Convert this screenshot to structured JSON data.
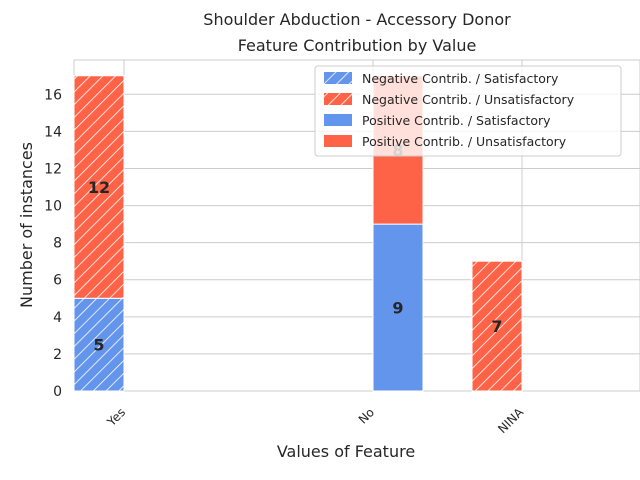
{
  "chart_data": {
    "type": "bar",
    "title_line1": "Shoulder Abduction - Accessory Donor",
    "title_line2": "Feature Contribution by Value",
    "xlabel": "Values of Feature",
    "ylabel": "Number of instances",
    "categories": [
      "Yes",
      "No",
      "NINA"
    ],
    "ylim": [
      0,
      17.85
    ],
    "yticks": [
      0,
      2,
      4,
      6,
      8,
      10,
      12,
      14,
      16
    ],
    "grid": true,
    "legend_position": "top-right",
    "colors": {
      "satisfactory": "#6495ED",
      "unsatisfactory": "#FF6347"
    },
    "groups": [
      {
        "name": "Negative Contrib.",
        "hatched": true,
        "series": [
          {
            "name": "Negative Contrib. / Satisfactory",
            "outcome": "satisfactory",
            "values": [
              5,
              0,
              0
            ]
          },
          {
            "name": "Negative Contrib. / Unsatisfactory",
            "outcome": "unsatisfactory",
            "values": [
              12,
              0,
              7
            ]
          }
        ]
      },
      {
        "name": "Positive Contrib.",
        "hatched": false,
        "series": [
          {
            "name": "Positive Contrib. / Satisfactory",
            "outcome": "satisfactory",
            "values": [
              0,
              9,
              0
            ]
          },
          {
            "name": "Positive Contrib. / Unsatisfactory",
            "outcome": "unsatisfactory",
            "values": [
              0,
              8,
              0
            ]
          }
        ]
      }
    ],
    "legend": [
      "Negative Contrib. / Satisfactory",
      "Negative Contrib. / Unsatisfactory",
      "Positive Contrib. / Satisfactory",
      "Positive Contrib. / Unsatisfactory"
    ]
  }
}
